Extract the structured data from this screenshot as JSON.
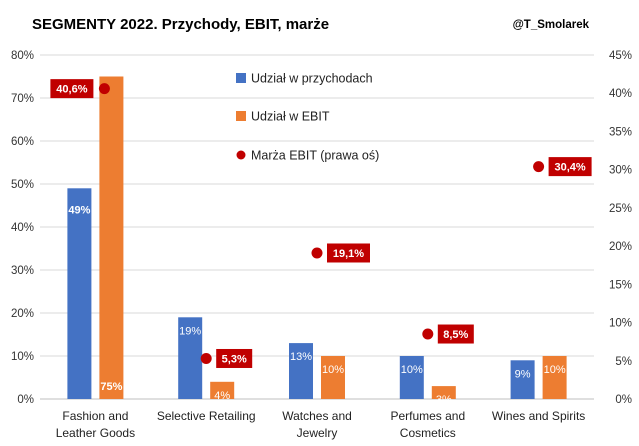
{
  "title": "SEGMENTY 2022. Przychody, EBIT, marże",
  "handle": "@T_Smolarek",
  "colors": {
    "revenue": "#4472C4",
    "ebit": "#ED7D31",
    "margin": "#C00000"
  },
  "chart_data": {
    "type": "bar",
    "categories": [
      [
        "Fashion and",
        "Leather Goods"
      ],
      [
        "Selective Retailing"
      ],
      [
        "Watches and",
        "Jewelry"
      ],
      [
        "Perfumes and",
        "Cosmetics"
      ],
      [
        "Wines and Spirits"
      ]
    ],
    "series": [
      {
        "name": "Udział w przychodach",
        "axis": "left",
        "kind": "bar",
        "values": [
          49,
          19,
          13,
          10,
          9
        ],
        "labels": [
          "49%",
          "19%",
          "13%",
          "10%",
          "9%"
        ]
      },
      {
        "name": "Udział w EBIT",
        "axis": "left",
        "kind": "bar",
        "values": [
          75,
          4,
          10,
          3,
          10
        ],
        "labels": [
          "75%",
          "4%",
          "10%",
          "3%",
          "10%"
        ]
      },
      {
        "name": "Marża EBIT (prawa oś)",
        "axis": "right",
        "kind": "marker",
        "values": [
          40.6,
          5.3,
          19.1,
          8.5,
          30.4
        ],
        "labels": [
          "40,6%",
          "5,3%",
          "19,1%",
          "8,5%",
          "30,4%"
        ]
      }
    ],
    "ylim": [
      0,
      80
    ],
    "y_ticks": [
      "0%",
      "10%",
      "20%",
      "30%",
      "40%",
      "50%",
      "60%",
      "70%",
      "80%"
    ],
    "y2lim": [
      0,
      45
    ],
    "y2_ticks": [
      "0%",
      "5%",
      "10%",
      "15%",
      "20%",
      "25%",
      "30%",
      "35%",
      "40%",
      "45%"
    ],
    "grid": true,
    "legend_position": "top-center"
  }
}
